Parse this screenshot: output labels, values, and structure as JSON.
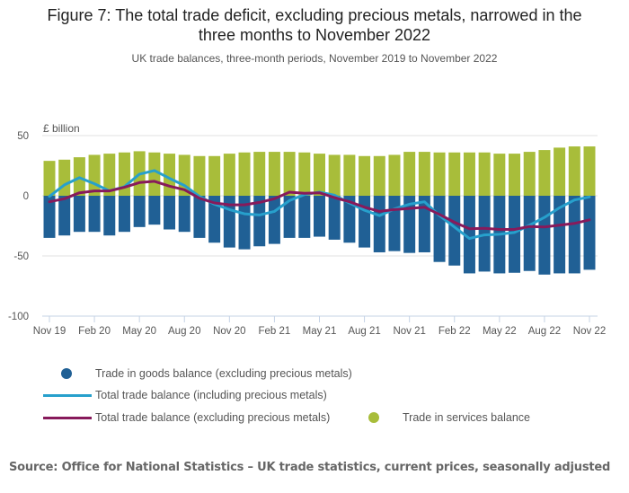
{
  "title_line1": "Figure 7: The total trade deficit, excluding precious metals, narrowed in the",
  "title_line2": "three months to November 2022",
  "subtitle": "UK trade balances, three-month periods, November 2019 to November 2022",
  "source": "Source: Office for National Statistics – UK trade statistics, current prices, seasonally adjusted",
  "colors": {
    "goods": "#206095",
    "services": "#a8bd3a",
    "total_incl": "#27a0cc",
    "total_excl": "#871a5b",
    "grid": "#e0e0e0",
    "axis": "#c5d3e6"
  },
  "chart_data": {
    "type": "bar",
    "title": "Figure 7: The total trade deficit, excluding precious metals, narrowed in the three months to November 2022",
    "subtitle": "UK trade balances, three-month periods, November 2019 to November 2022",
    "xlabel": "",
    "ylabel": "£ billion",
    "ylim": [
      -100,
      50
    ],
    "yticks": [
      50,
      0,
      -50,
      -100
    ],
    "grid": true,
    "stacked": true,
    "legend_position": "bottom",
    "categories": [
      "Nov 19",
      "Dec 19",
      "Jan 20",
      "Feb 20",
      "Mar 20",
      "Apr 20",
      "May 20",
      "Jun 20",
      "Jul 20",
      "Aug 20",
      "Sep 20",
      "Oct 20",
      "Nov 20",
      "Dec 20",
      "Jan 21",
      "Feb 21",
      "Mar 21",
      "Apr 21",
      "May 21",
      "Jun 21",
      "Jul 21",
      "Aug 21",
      "Sep 21",
      "Oct 21",
      "Nov 21",
      "Dec 21",
      "Jan 22",
      "Feb 22",
      "Mar 22",
      "Apr 22",
      "May 22",
      "Jun 22",
      "Jul 22",
      "Aug 22",
      "Sep 22",
      "Oct 22",
      "Nov 22"
    ],
    "xtick_labels": [
      "Nov 19",
      "Feb 20",
      "May 20",
      "Aug 20",
      "Nov 20",
      "Feb 21",
      "May 21",
      "Aug 21",
      "Nov 21",
      "Feb 22",
      "May 22",
      "Aug 22",
      "Nov 22"
    ],
    "series": [
      {
        "name": "Trade in goods balance (excluding precious metals)",
        "kind": "bar",
        "values": [
          -35,
          -33,
          -30,
          -30,
          -33,
          -30,
          -26,
          -24,
          -28,
          -30,
          -35,
          -39,
          -43,
          -44.5,
          -42,
          -40,
          -35,
          -35,
          -34,
          -36.5,
          -39,
          -43,
          -47,
          -46,
          -47.5,
          -47,
          -55,
          -58,
          -64.5,
          -63,
          -64.5,
          -64,
          -62.5,
          -65.5,
          -64.5,
          -64.5,
          -61.5
        ]
      },
      {
        "name": "Trade in services balance",
        "kind": "bar",
        "values": [
          29,
          30,
          32,
          34,
          35,
          36,
          37,
          36,
          35,
          34,
          33,
          33,
          35,
          36,
          36.5,
          36.5,
          36.5,
          36,
          35,
          34,
          34,
          33,
          33,
          34,
          36.5,
          36.5,
          36,
          36,
          36,
          36,
          35,
          35,
          36.5,
          38,
          40,
          41,
          41
        ]
      },
      {
        "name": "Total trade balance (including precious metals)",
        "kind": "line",
        "values": [
          -0.5,
          9,
          15,
          10,
          4,
          7.5,
          18,
          21,
          14.5,
          8.5,
          -0.5,
          -7,
          -11.5,
          -15,
          -16,
          -13,
          -4,
          1,
          3,
          0.5,
          -6,
          -12,
          -16.5,
          -11,
          -7,
          -5,
          -16.5,
          -26,
          -35.5,
          -32.5,
          -32,
          -30.5,
          -24.5,
          -18,
          -10,
          -3.5,
          -1
        ]
      },
      {
        "name": "Total trade balance (excluding precious metals)",
        "kind": "line",
        "values": [
          -5,
          -2.5,
          2.5,
          4,
          4,
          7,
          11,
          12,
          8,
          5,
          -2,
          -6,
          -7.5,
          -7.5,
          -5.5,
          -2.5,
          3,
          2,
          2.5,
          -1.5,
          -5,
          -9.5,
          -13,
          -11.5,
          -10.5,
          -9.5,
          -15.5,
          -22,
          -27.5,
          -27,
          -28,
          -28,
          -25.5,
          -26,
          -24.5,
          -23,
          -20
        ]
      }
    ]
  },
  "legend": [
    {
      "label": "Trade in goods balance (excluding precious metals)",
      "marker": "dot",
      "color_key": "goods"
    },
    {
      "label": "Total trade balance (including precious metals)",
      "marker": "line",
      "color_key": "total_incl"
    },
    {
      "label": "Total trade balance (excluding precious metals)",
      "marker": "line",
      "color_key": "total_excl"
    },
    {
      "label": "Trade in services balance",
      "marker": "dot",
      "color_key": "services"
    }
  ]
}
